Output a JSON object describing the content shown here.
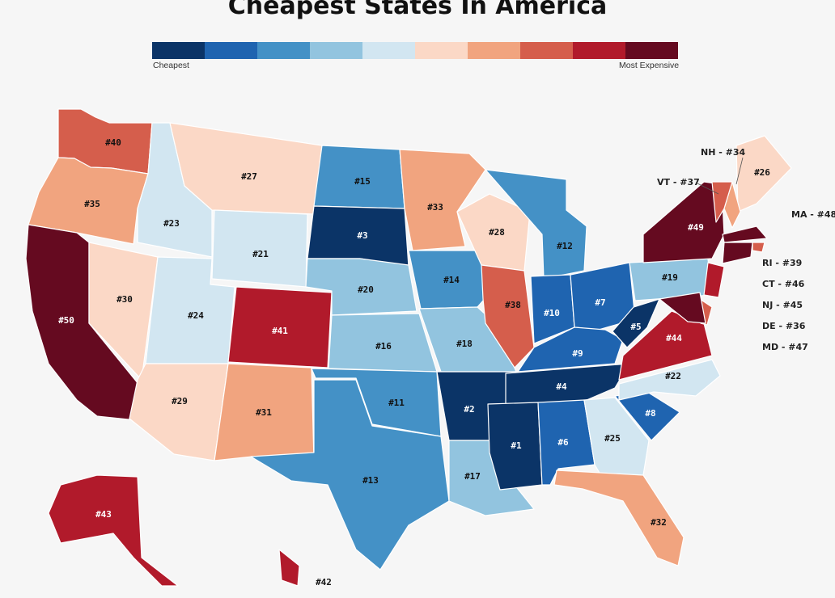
{
  "title": "Cheapest States In America",
  "legend": {
    "low_label": "Cheapest",
    "high_label": "Most Expensive",
    "colors": [
      "#0b3467",
      "#1f64b0",
      "#4491c6",
      "#92c4df",
      "#d2e6f1",
      "#fbd8c6",
      "#f1a47f",
      "#d55e4c",
      "#b11a2b",
      "#650a20"
    ]
  },
  "states": {
    "WA": "#40",
    "OR": "#35",
    "CA": "#50",
    "ID": "#23",
    "NV": "#30",
    "MT": "#27",
    "WY": "#21",
    "UT": "#24",
    "AZ": "#29",
    "CO": "#41",
    "NM": "#31",
    "ND": "#15",
    "SD": "#3",
    "NE": "#20",
    "KS": "#16",
    "OK": "#11",
    "TX": "#13",
    "MN": "#33",
    "IA": "#14",
    "MO": "#18",
    "AR": "#2",
    "LA": "#17",
    "WI": "#28",
    "IL": "#38",
    "MI": "#12",
    "IN": "#10",
    "OH": "#7",
    "KY": "#9",
    "TN": "#4",
    "MS": "#1",
    "AL": "#6",
    "GA": "#25",
    "FL": "#32",
    "SC": "#8",
    "NC": "#22",
    "VA": "#44",
    "WV": "#5",
    "PA": "#19",
    "NY": "#49",
    "ME": "#26",
    "AK": "#43",
    "HI": "#42"
  },
  "callouts": {
    "NH": "NH - #34",
    "VT": "VT - #37",
    "MA": "MA - #48",
    "RI": "RI - #39",
    "CT": "CT - #46",
    "NJ": "NJ - #45",
    "DE": "DE - #36",
    "MD": "MD - #47"
  }
}
